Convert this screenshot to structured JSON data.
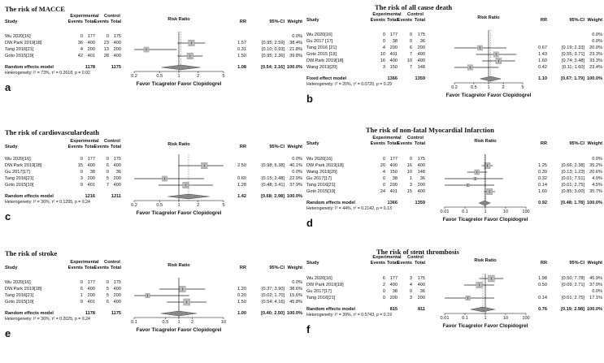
{
  "headers": {
    "study": "Study",
    "experimental": "Experimental",
    "control": "Control",
    "events": "Events",
    "total": "Total",
    "risk_ratio": "Risk Ratio",
    "rr": "RR",
    "ci": "95%-CI",
    "weight": "Weight"
  },
  "panels": [
    {
      "label": "a",
      "title": "The risk of MACCE",
      "favor": "Favor Ticagrelor Favor Clopidogrel",
      "model": "Random effects model",
      "model_exp_total": "1178",
      "model_ctl_total": "1175",
      "model_rr": "1.08",
      "model_ci": "[0.54; 2.16]",
      "model_weight": "100.0%",
      "heterogeneity": "Heterogeneity: I² = 73%, τ² = 0.2618, p = 0.02",
      "ticks": [
        "0.2",
        "0.5",
        "1",
        "2",
        "5"
      ],
      "chart_data": {
        "type": "forest",
        "scale": "log",
        "xlim": [
          0.2,
          5
        ],
        "pooled": {
          "rr": 1.08,
          "lo": 0.54,
          "hi": 2.16
        }
      },
      "rows": [
        {
          "study": "Wu 2020[16]",
          "e_ev": "0",
          "e_tot": "177",
          "c_ev": "0",
          "c_tot": "175",
          "rr": "",
          "ci": "",
          "w": "0.0%",
          "rr_v": null,
          "lo": null,
          "hi": null,
          "wt": 0
        },
        {
          "study": "DW.Park 2019[18]",
          "e_ev": "36",
          "e_tot": "400",
          "c_ev": "23",
          "c_tot": "400",
          "rr": "1.57",
          "ci": "[0.95; 2.59]",
          "w": "38.4%",
          "rr_v": 1.57,
          "lo": 0.95,
          "hi": 2.59,
          "wt": 38.4
        },
        {
          "study": "Tang 2016[21]",
          "e_ev": "4",
          "e_tot": "200",
          "c_ev": "13",
          "c_tot": "200",
          "rr": "0.31",
          "ci": "[0.10; 0.93]",
          "w": "21.8%",
          "rr_v": 0.31,
          "lo": 0.1,
          "hi": 0.93,
          "wt": 21.8
        },
        {
          "study": "Goto 2015[19]",
          "e_ev": "42",
          "e_tot": "401",
          "c_ev": "28",
          "c_tot": "400",
          "rr": "1.50",
          "ci": "[0.95; 2.36]",
          "w": "39.8%",
          "rr_v": 1.5,
          "lo": 0.95,
          "hi": 2.36,
          "wt": 39.8
        }
      ]
    },
    {
      "label": "b",
      "title": "The risk of all cause death",
      "favor": "Favor Ticagrelor Favor Clopidogrel",
      "model": "Fixed effect model",
      "model_exp_total": "1366",
      "model_ctl_total": "1359",
      "model_rr": "1.10",
      "model_ci": "[0.67; 1.79]",
      "model_weight": "100.0%",
      "heterogeneity": "Heterogeneity: I² = 20%, τ² = 0.0720, p = 0.29",
      "ticks": [
        "0.2",
        "0.5",
        "1",
        "2",
        "5"
      ],
      "chart_data": {
        "type": "forest",
        "scale": "log",
        "xlim": [
          0.2,
          5
        ],
        "pooled": {
          "rr": 1.1,
          "lo": 0.67,
          "hi": 1.79
        }
      },
      "rows": [
        {
          "study": "Wu 2020[16]",
          "e_ev": "0",
          "e_tot": "177",
          "c_ev": "0",
          "c_tot": "175",
          "rr": "",
          "ci": "",
          "w": "0.0%",
          "rr_v": null,
          "lo": null,
          "hi": null,
          "wt": 0
        },
        {
          "study": "Gu 2017 [17]",
          "e_ev": "0",
          "e_tot": "38",
          "c_ev": "0",
          "c_tot": "36",
          "rr": "",
          "ci": "",
          "w": "0.0%",
          "rr_v": null,
          "lo": null,
          "hi": null,
          "wt": 0
        },
        {
          "study": "Tang 2016 [21]",
          "e_ev": "4",
          "e_tot": "200",
          "c_ev": "6",
          "c_tot": "200",
          "rr": "0.67",
          "ci": "[0.19; 2.33]",
          "w": "20.0%",
          "rr_v": 0.67,
          "lo": 0.19,
          "hi": 2.33,
          "wt": 20.0
        },
        {
          "study": "Goto 2015 [19]",
          "e_ev": "10",
          "e_tot": "401",
          "c_ev": "7",
          "c_tot": "400",
          "rr": "1.43",
          "ci": "[0.55; 3.71]",
          "w": "23.3%",
          "rr_v": 1.43,
          "lo": 0.55,
          "hi": 3.71,
          "wt": 23.3
        },
        {
          "study": "DW.Park 2019[18]",
          "e_ev": "16",
          "e_tot": "400",
          "c_ev": "10",
          "c_tot": "400",
          "rr": "1.60",
          "ci": "[0.74; 3.48]",
          "w": "33.3%",
          "rr_v": 1.6,
          "lo": 0.74,
          "hi": 3.48,
          "wt": 33.3
        },
        {
          "study": "Wang 2019[20]",
          "e_ev": "3",
          "e_tot": "150",
          "c_ev": "7",
          "c_tot": "148",
          "rr": "0.42",
          "ci": "[0.11; 1.60]",
          "w": "23.4%",
          "rr_v": 0.42,
          "lo": 0.11,
          "hi": 1.6,
          "wt": 23.4
        }
      ]
    },
    {
      "label": "c",
      "title": "The risk of cardiovasculardeath",
      "favor": "Favor Ticagrelor Favor Clopidogrel",
      "model": "Random effects model",
      "model_exp_total": "1216",
      "model_ctl_total": "1211",
      "model_rr": "1.42",
      "model_ci": "[0.68; 2.98]",
      "model_weight": "100.0%",
      "heterogeneity": "Heterogeneity: I² = 30%, τ² = 0.1295, p = 0.24",
      "ticks": [
        "0.2",
        "0.5",
        "1",
        "2",
        "5"
      ],
      "chart_data": {
        "type": "forest",
        "scale": "log",
        "xlim": [
          0.2,
          5
        ],
        "pooled": {
          "rr": 1.42,
          "lo": 0.68,
          "hi": 2.98
        }
      },
      "rows": [
        {
          "study": "Wu 2020[16]",
          "e_ev": "0",
          "e_tot": "177",
          "c_ev": "0",
          "c_tot": "175",
          "rr": "",
          "ci": "",
          "w": "0.0%",
          "rr_v": null,
          "lo": null,
          "hi": null,
          "wt": 0
        },
        {
          "study": "DW.Park 2019[18]",
          "e_ev": "15",
          "e_tot": "400",
          "c_ev": "6",
          "c_tot": "400",
          "rr": "2.50",
          "ci": "[0.98; 6.38]",
          "w": "40.1%",
          "rr_v": 2.5,
          "lo": 0.98,
          "hi": 6.38,
          "wt": 40.1
        },
        {
          "study": "Gu 2017[17]",
          "e_ev": "0",
          "e_tot": "38",
          "c_ev": "0",
          "c_tot": "36",
          "rr": "",
          "ci": "",
          "w": "0.0%",
          "rr_v": null,
          "lo": null,
          "hi": null,
          "wt": 0
        },
        {
          "study": "Tang 2016[21]",
          "e_ev": "3",
          "e_tot": "200",
          "c_ev": "5",
          "c_tot": "200",
          "rr": "0.60",
          "ci": "[0.15; 2.48]",
          "w": "22.0%",
          "rr_v": 0.6,
          "lo": 0.15,
          "hi": 2.48,
          "wt": 22.0
        },
        {
          "study": "Goto 2015[19]",
          "e_ev": "9",
          "e_tot": "401",
          "c_ev": "7",
          "c_tot": "400",
          "rr": "1.28",
          "ci": "[0.48; 3.41]",
          "w": "37.9%",
          "rr_v": 1.28,
          "lo": 0.48,
          "hi": 3.41,
          "wt": 37.9
        }
      ]
    },
    {
      "label": "d",
      "title": "The risk of non-fatal Myocardial Infarction",
      "favor": "Favor Ticagrelor Favor Clopidogrel",
      "model": "Random effects model",
      "model_exp_total": "1366",
      "model_ctl_total": "1359",
      "model_rr": "0.92",
      "model_ci": "[0.48; 1.78]",
      "model_weight": "100.0%",
      "heterogeneity": "Heterogeneity: I² = 44%, τ² = 0.2142, p = 0.13",
      "ticks": [
        "0.01",
        "0.1",
        "1",
        "10",
        "100"
      ],
      "chart_data": {
        "type": "forest",
        "scale": "log",
        "xlim": [
          0.01,
          100
        ],
        "pooled": {
          "rr": 0.92,
          "lo": 0.48,
          "hi": 1.78
        }
      },
      "rows": [
        {
          "study": "Wu 2020[16]",
          "e_ev": "0",
          "e_tot": "177",
          "c_ev": "0",
          "c_tot": "175",
          "rr": "",
          "ci": "",
          "w": "0.0%",
          "rr_v": null,
          "lo": null,
          "hi": null,
          "wt": 0
        },
        {
          "study": "DW Park 2019[18]",
          "e_ev": "20",
          "e_tot": "400",
          "c_ev": "16",
          "c_tot": "400",
          "rr": "1.25",
          "ci": "[0.66; 2.38]",
          "w": "35.2%",
          "rr_v": 1.25,
          "lo": 0.66,
          "hi": 2.38,
          "wt": 35.2
        },
        {
          "study": "Wang 2019[20]",
          "e_ev": "4",
          "e_tot": "150",
          "c_ev": "10",
          "c_tot": "148",
          "rr": "0.39",
          "ci": "[0.13; 1.23]",
          "w": "20.6%",
          "rr_v": 0.39,
          "lo": 0.13,
          "hi": 1.23,
          "wt": 20.6
        },
        {
          "study": "Gu 2017[17]",
          "e_ev": "0",
          "e_tot": "38",
          "c_ev": "1",
          "c_tot": "36",
          "rr": "0.32",
          "ci": "[0.01; 7.51]",
          "w": "4.0%",
          "rr_v": 0.32,
          "lo": 0.01,
          "hi": 7.51,
          "wt": 4.0
        },
        {
          "study": "Tang 2016[21]",
          "e_ev": "0",
          "e_tot": "200",
          "c_ev": "3",
          "c_tot": "200",
          "rr": "0.14",
          "ci": "[0.01; 2.75]",
          "w": "4.5%",
          "rr_v": 0.14,
          "lo": 0.01,
          "hi": 2.75,
          "wt": 4.5
        },
        {
          "study": "Goto 2015[19]",
          "e_ev": "24",
          "e_tot": "401",
          "c_ev": "15",
          "c_tot": "400",
          "rr": "1.60",
          "ci": "[0.85; 3.00]",
          "w": "35.7%",
          "rr_v": 1.6,
          "lo": 0.85,
          "hi": 3.0,
          "wt": 35.7
        }
      ]
    },
    {
      "label": "e",
      "title": "The risk of stroke",
      "favor": "Favor Ticagrelor Favor Clopidogrel",
      "model": "Random effects model",
      "model_exp_total": "1178",
      "model_ctl_total": "1175",
      "model_rr": "1.00",
      "model_ci": "[0.40; 2.50]",
      "model_weight": "100.0%",
      "heterogeneity": "Heterogeneity: I² = 30%, τ² = 0.2025, p = 0.24",
      "ticks": [
        "0.1",
        "0.5",
        "1",
        "2",
        "10"
      ],
      "chart_data": {
        "type": "forest",
        "scale": "log",
        "xlim": [
          0.1,
          10
        ],
        "pooled": {
          "rr": 1.0,
          "lo": 0.4,
          "hi": 2.5
        }
      },
      "rows": [
        {
          "study": "Wu 2020[16]",
          "e_ev": "0",
          "e_tot": "177",
          "c_ev": "0",
          "c_tot": "175",
          "rr": "",
          "ci": "",
          "w": "0.0%",
          "rr_v": null,
          "lo": null,
          "hi": null,
          "wt": 0
        },
        {
          "study": "DW.Park 2019[18]",
          "e_ev": "6",
          "e_tot": "400",
          "c_ev": "5",
          "c_tot": "400",
          "rr": "1.20",
          "ci": "[0.37; 3.90]",
          "w": "38.6%",
          "rr_v": 1.2,
          "lo": 0.37,
          "hi": 3.9,
          "wt": 38.6
        },
        {
          "study": "Tang 2016[21]",
          "e_ev": "1",
          "e_tot": "200",
          "c_ev": "5",
          "c_tot": "200",
          "rr": "0.20",
          "ci": "[0.02; 1.70]",
          "w": "15.6%",
          "rr_v": 0.2,
          "lo": 0.02,
          "hi": 1.7,
          "wt": 15.6
        },
        {
          "study": "Goto 2015[19]",
          "e_ev": "9",
          "e_tot": "401",
          "c_ev": "6",
          "c_tot": "400",
          "rr": "1.50",
          "ci": "[0.54; 4.16]",
          "w": "45.8%",
          "rr_v": 1.5,
          "lo": 0.54,
          "hi": 4.16,
          "wt": 45.8
        }
      ]
    },
    {
      "label": "f",
      "title": "The risk of stent thrombosis",
      "favor": "Favor Ticagrelor Favor Clopidogrel",
      "model": "Random effects model",
      "model_exp_total": "815",
      "model_ctl_total": "811",
      "model_rr": "0.76",
      "model_ci": "[0.19; 2.98]",
      "model_weight": "100.0%",
      "heterogeneity": "Heterogeneity: I² = 39%, τ² = 0.5743, p = 0.19",
      "ticks": [
        "0.01",
        "0.1",
        "1",
        "10",
        "100"
      ],
      "chart_data": {
        "type": "forest",
        "scale": "log",
        "xlim": [
          0.01,
          100
        ],
        "pooled": {
          "rr": 0.76,
          "lo": 0.19,
          "hi": 2.98
        }
      },
      "rows": [
        {
          "study": "Wu 2020[16]",
          "e_ev": "6",
          "e_tot": "177",
          "c_ev": "3",
          "c_tot": "175",
          "rr": "1.98",
          "ci": "[0.50; 7.78]",
          "w": "45.9%",
          "rr_v": 1.98,
          "lo": 0.5,
          "hi": 7.78,
          "wt": 45.9
        },
        {
          "study": "DW Park 2019[18]",
          "e_ev": "2",
          "e_tot": "400",
          "c_ev": "4",
          "c_tot": "400",
          "rr": "0.50",
          "ci": "[0.09; 2.71]",
          "w": "37.0%",
          "rr_v": 0.5,
          "lo": 0.09,
          "hi": 2.71,
          "wt": 37.0
        },
        {
          "study": "Gu 2017[17]",
          "e_ev": "0",
          "e_tot": "38",
          "c_ev": "0",
          "c_tot": "36",
          "rr": "",
          "ci": "",
          "w": "0.0%",
          "rr_v": null,
          "lo": null,
          "hi": null,
          "wt": 0
        },
        {
          "study": "Tang 2016[21]",
          "e_ev": "0",
          "e_tot": "200",
          "c_ev": "3",
          "c_tot": "200",
          "rr": "0.14",
          "ci": "[0.01; 2.75]",
          "w": "17.1%",
          "rr_v": 0.14,
          "lo": 0.01,
          "hi": 2.75,
          "wt": 17.1
        }
      ]
    }
  ]
}
